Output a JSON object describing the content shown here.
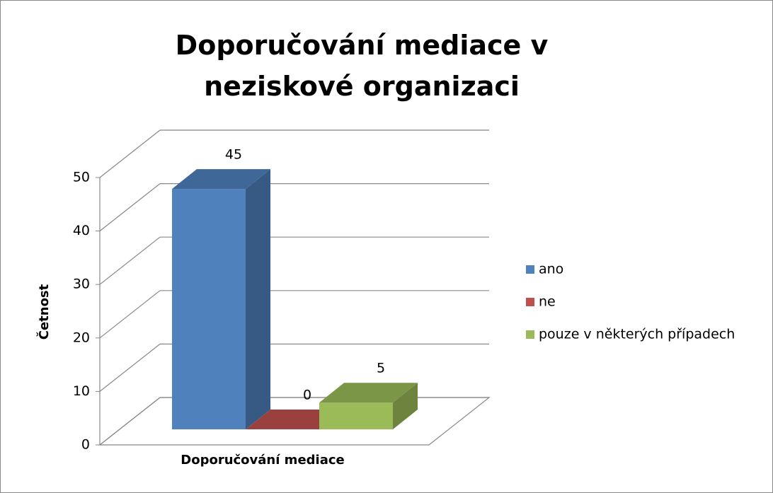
{
  "chart_data": {
    "type": "bar3d",
    "title": "Doporučování mediace v neziskové organizaci",
    "x_label": "Doporučování mediace",
    "y_label": "Četnost",
    "categories": [
      "Doporučování mediace"
    ],
    "series": [
      {
        "name": "ano",
        "color": "#4f81bd",
        "values": [
          45
        ]
      },
      {
        "name": "ne",
        "color": "#c0504d",
        "values": [
          0
        ]
      },
      {
        "name": "pouze v některých případech",
        "color": "#9bbb59",
        "values": [
          5
        ]
      }
    ],
    "ylim": [
      0,
      50
    ],
    "yticks": [
      0,
      10,
      20,
      30,
      40,
      50
    ],
    "grid": true,
    "legend": "right",
    "data_labels": true
  }
}
